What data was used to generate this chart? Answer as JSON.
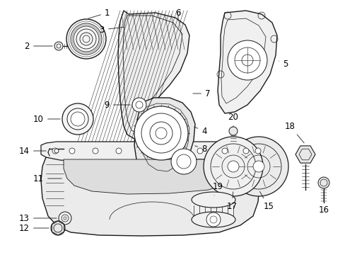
{
  "background_color": "#ffffff",
  "line_color": "#1a1a1a",
  "text_color": "#000000",
  "fontsize": 8.5,
  "fig_w": 4.89,
  "fig_h": 3.6,
  "dpi": 100
}
